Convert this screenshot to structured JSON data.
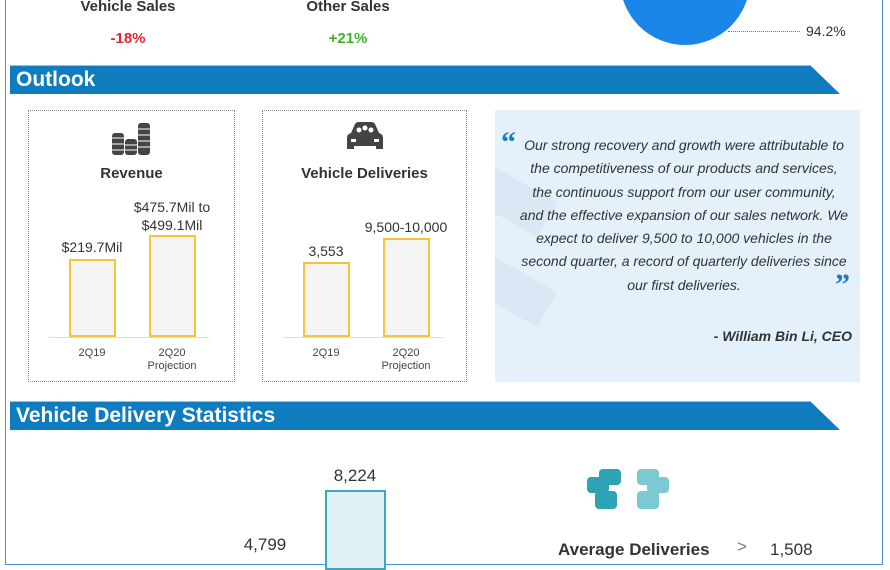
{
  "top": {
    "kpis": [
      {
        "label": "Vehicle Sales",
        "value": "-18%",
        "color": "#e8262a"
      },
      {
        "label": "Other Sales",
        "value": "+21%",
        "color": "#3cb521"
      }
    ],
    "pie_label": "94.2%",
    "pie_color": "#1a86e8"
  },
  "outlook": {
    "title": "Outlook",
    "revenue": {
      "title": "Revenue",
      "icon": "coins-stack-icon",
      "bars": [
        {
          "x": "2Q19",
          "x_sub": "",
          "label": "$219.7Mil",
          "label2": ""
        },
        {
          "x": "2Q20",
          "x_sub": "Projection",
          "label": "$475.7Mil to",
          "label2": "$499.1Mil"
        }
      ]
    },
    "deliveries": {
      "title": "Vehicle Deliveries",
      "icon": "car-icon",
      "bars": [
        {
          "x": "2Q19",
          "x_sub": "",
          "label": "3,553"
        },
        {
          "x": "2Q20",
          "x_sub": "Projection",
          "label": "9,500-10,000"
        }
      ]
    },
    "quote": {
      "text": "Our strong recovery and growth were attributable to the competitiveness of our products and services, the continuous support from our user community, and the effective expansion of our sales network. We expect to deliver 9,500 to 10,000 vehicles in the second quarter, a record of quarterly deliveries since our first deliveries.",
      "author": "- William Bin Li, CEO"
    }
  },
  "stats": {
    "title": "Vehicle Delivery Statistics",
    "bars": [
      {
        "label": "4,799"
      },
      {
        "label": "8,224"
      }
    ],
    "cars_icon": "cars-group-icon",
    "avg_label": "Average Deliveries",
    "avg_value": "1,508"
  }
}
